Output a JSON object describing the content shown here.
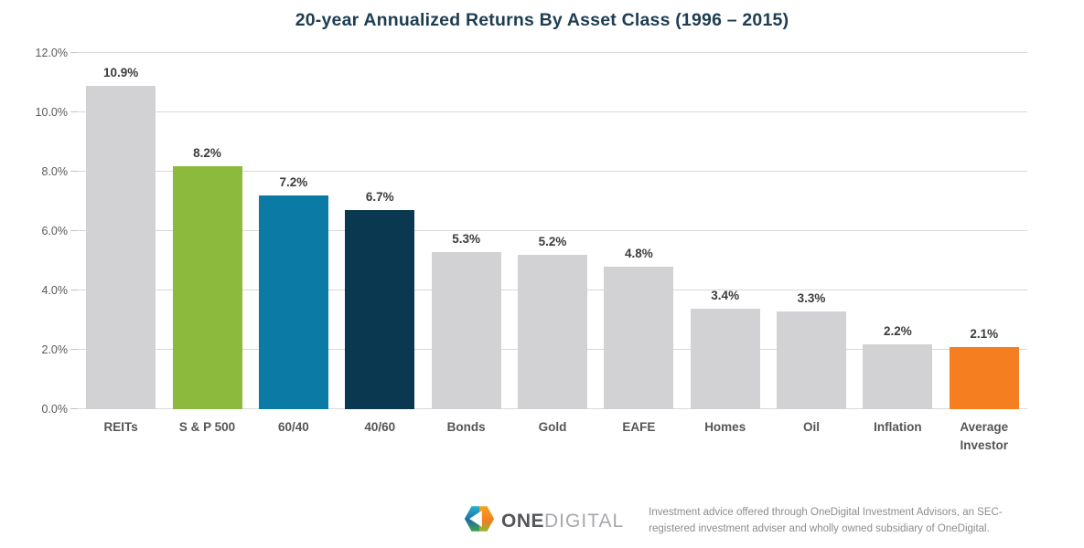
{
  "chart_data": {
    "type": "bar",
    "title": "20-year Annualized Returns By Asset Class (1996 – 2015)",
    "categories": [
      "REITs",
      "S & P 500",
      "60/40",
      "40/60",
      "Bonds",
      "Gold",
      "EAFE",
      "Homes",
      "Oil",
      "Inflation",
      "Average Investor"
    ],
    "values": [
      10.9,
      8.2,
      7.2,
      6.7,
      5.3,
      5.2,
      4.8,
      3.4,
      3.3,
      2.2,
      2.1
    ],
    "value_labels": [
      "10.9%",
      "8.2%",
      "7.2%",
      "6.7%",
      "5.3%",
      "5.2%",
      "4.8%",
      "3.4%",
      "3.3%",
      "2.2%",
      "2.1%"
    ],
    "bar_colors": [
      "#d2d2d4",
      "#8bba3c",
      "#0b7aa4",
      "#093850",
      "#d2d2d4",
      "#d2d2d4",
      "#d2d2d4",
      "#d2d2d4",
      "#d2d2d4",
      "#d2d2d4",
      "#f57e20"
    ],
    "xlabel": "",
    "ylabel": "",
    "ylim": [
      0,
      12
    ],
    "ytick_labels": [
      "0.0%",
      "2.0%",
      "4.0%",
      "6.0%",
      "8.0%",
      "10.0%",
      "12.0%"
    ],
    "grid": true,
    "legend": false
  },
  "colors": {
    "accent_green": "#8bba3c",
    "accent_blue": "#0b7aa4",
    "accent_navy": "#093850",
    "accent_orange": "#f57e20",
    "neutral_bar": "#d2d2d4",
    "gridline": "#d9d9d9",
    "title_text": "#1d3d52"
  },
  "footer": {
    "logo_one": "ONE",
    "logo_digital": "DIGITAL",
    "disclaimer": "Investment advice offered through OneDigital Investment Advisors, an SEC-registered investment adviser and wholly owned subsidiary of OneDigital."
  }
}
